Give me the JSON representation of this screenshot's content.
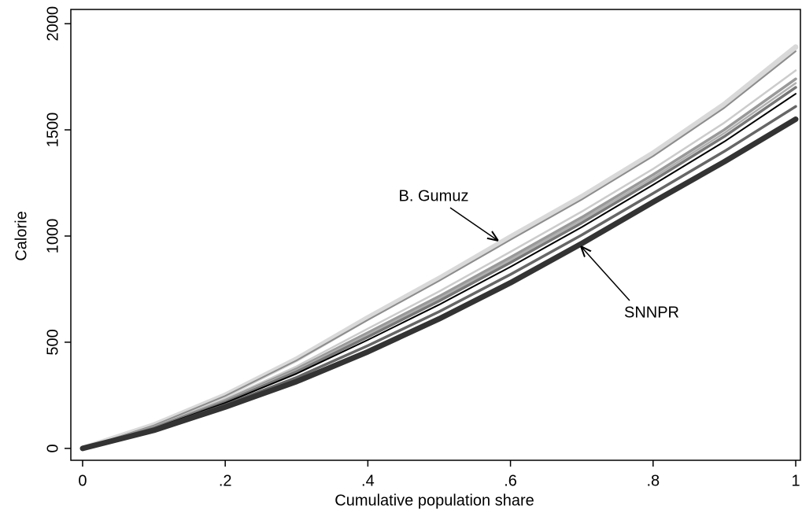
{
  "chart_data": {
    "type": "line",
    "xlabel": "Cumulative population share",
    "ylabel": "Calorie",
    "x": [
      0,
      0.1,
      0.2,
      0.3,
      0.4,
      0.5,
      0.6,
      0.7,
      0.8,
      0.9,
      1
    ],
    "series": [
      {
        "color": "#d9d9d9",
        "line_width": 7,
        "values": [
          0,
          110,
          250,
          420,
          615,
          800,
          995,
          1185,
          1390,
          1620,
          1890
        ]
      },
      {
        "color": "#8c8c8c",
        "line_width": 2,
        "values": [
          0,
          108,
          247,
          414,
          605,
          789,
          982,
          1172,
          1376,
          1604,
          1870
        ]
      },
      {
        "color": "#cccccc",
        "line_width": 2.5,
        "values": [
          0,
          102,
          232,
          386,
          564,
          739,
          926,
          1115,
          1316,
          1534,
          1780
        ]
      },
      {
        "color": "#999999",
        "line_width": 3.5,
        "values": [
          0,
          99,
          226,
          374,
          545,
          716,
          900,
          1088,
          1289,
          1501,
          1740
        ]
      },
      {
        "color": "#b0b0b0",
        "line_width": 2.5,
        "values": [
          0,
          98,
          223,
          368,
          535,
          705,
          888,
          1075,
          1275,
          1485,
          1720
        ]
      },
      {
        "color": "#777777",
        "line_width": 3.5,
        "values": [
          0,
          96,
          219,
          361,
          525,
          694,
          875,
          1062,
          1261,
          1469,
          1700
        ]
      },
      {
        "color": "#000000",
        "line_width": 2,
        "values": [
          0,
          94,
          214,
          352,
          511,
          677,
          855,
          1042,
          1241,
          1445,
          1670
        ]
      },
      {
        "color": "#666666",
        "line_width": 3.5,
        "values": [
          0,
          90,
          205,
          334,
          484,
          644,
          819,
          1005,
          1201,
          1399,
          1610
        ]
      },
      {
        "color": "#333333",
        "line_width": 7,
        "values": [
          0,
          85,
          195,
          315,
          455,
          610,
          780,
          965,
          1160,
          1350,
          1550
        ]
      }
    ],
    "xlim": [
      -0.0165,
      1.0066
    ],
    "ylim": [
      -56,
      2067
    ],
    "xticks": [
      0,
      {
        "value": 0.2,
        "label": ".2"
      },
      {
        "value": 0.4,
        "label": ".4"
      },
      {
        "value": 0.6,
        "label": ".6"
      },
      {
        "value": 0.8,
        "label": ".8"
      },
      1
    ],
    "yticks": [
      0,
      500,
      1000,
      1500,
      2000
    ],
    "grid": false,
    "annotations": [
      {
        "text": "B. Gumuz"
      },
      {
        "text": "SNNPR"
      }
    ]
  }
}
